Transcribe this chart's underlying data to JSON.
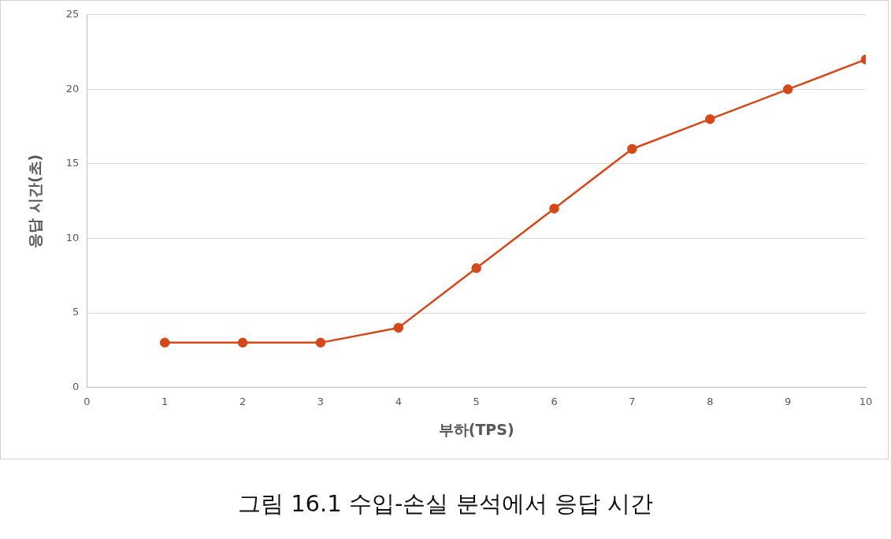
{
  "chart_data": {
    "type": "line",
    "xlabel": "부하(TPS)",
    "ylabel": "응답 시간(초)",
    "x": [
      1,
      2,
      3,
      4,
      5,
      6,
      7,
      8,
      9,
      10
    ],
    "series": [
      {
        "color": "#d4481a",
        "values": [
          3,
          3,
          3,
          4,
          8,
          12,
          16,
          18,
          20,
          22
        ]
      }
    ],
    "xlim": [
      0,
      10
    ],
    "xticks": [
      0,
      1,
      2,
      3,
      4,
      5,
      6,
      7,
      8,
      9,
      10
    ],
    "ylim": [
      0,
      25
    ],
    "yticks": [
      0,
      5,
      10,
      15,
      20,
      25
    ],
    "grid": "y",
    "marker": "circle",
    "line_style": "solid",
    "annotations": [
      "그림 16.1 수입-손실 분석에서 응답 시간"
    ]
  }
}
